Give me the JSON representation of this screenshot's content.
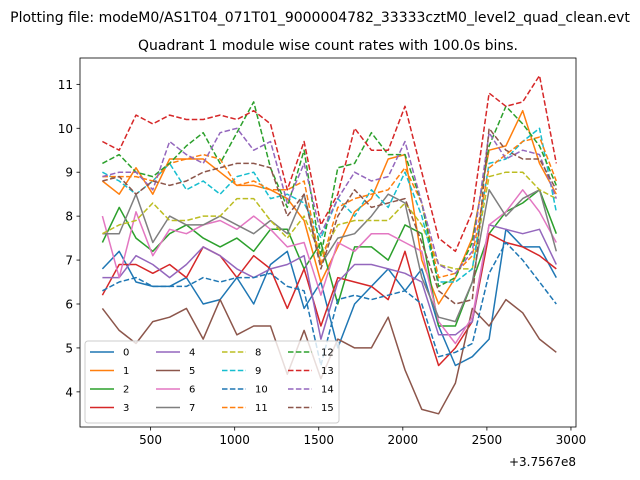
{
  "chart_data": {
    "type": "line",
    "suptitle": "Plotting file: modeM0/AS1T04_071T01_9000004782_33333cztM0_level2_quad_clean.evt",
    "title": "Quadrant 1 module wise count rates with 100.0s bins.",
    "xlabel": "",
    "ylabel": "",
    "x_offset_label": "+3.7567e8",
    "xlim": [
      80,
      3030
    ],
    "ylim": [
      3.2,
      11.6
    ],
    "x_ticks": [
      500,
      1000,
      1500,
      2000,
      2500,
      3000
    ],
    "x_tick_labels": [
      "500",
      "1000",
      "1500",
      "2000",
      "2500",
      "3000"
    ],
    "y_ticks": [
      4,
      5,
      6,
      7,
      8,
      9,
      10,
      11
    ],
    "y_tick_labels": [
      "4",
      "5",
      "6",
      "7",
      "8",
      "9",
      "10",
      "11"
    ],
    "grid": false,
    "legend_position": "lower-left",
    "legend_columns": 4,
    "x": [
      213,
      313,
      413,
      513,
      613,
      713,
      813,
      913,
      1013,
      1113,
      1213,
      1313,
      1413,
      1513,
      1613,
      1713,
      1813,
      1913,
      2013,
      2113,
      2213,
      2313,
      2413,
      2513,
      2613,
      2713,
      2813,
      2913
    ],
    "series": [
      {
        "name": "0",
        "color": "#1f77b4",
        "dash": "solid",
        "values": [
          6.8,
          7.2,
          6.5,
          6.4,
          6.4,
          6.6,
          6.0,
          6.1,
          6.6,
          6.0,
          6.9,
          7.2,
          5.9,
          6.5,
          5.0,
          6.0,
          6.4,
          6.8,
          6.3,
          6.8,
          5.5,
          4.6,
          4.8,
          5.2,
          7.7,
          7.3,
          7.3,
          6.6
        ]
      },
      {
        "name": "1",
        "color": "#ff7f0e",
        "dash": "solid",
        "values": [
          8.8,
          8.5,
          9.1,
          8.5,
          9.3,
          9.3,
          9.3,
          9.0,
          8.7,
          8.7,
          8.6,
          8.4,
          7.9,
          6.5,
          7.3,
          8.1,
          8.4,
          9.3,
          9.4,
          7.0,
          6.0,
          6.6,
          7.5,
          9.5,
          9.6,
          10.4,
          9.2,
          8.5
        ]
      },
      {
        "name": "2",
        "color": "#2ca02c",
        "dash": "solid",
        "values": [
          7.4,
          8.2,
          7.5,
          7.2,
          7.6,
          7.8,
          7.5,
          7.3,
          7.5,
          7.2,
          7.7,
          7.7,
          6.8,
          7.4,
          6.0,
          7.3,
          7.3,
          7.0,
          7.8,
          7.6,
          5.5,
          5.5,
          6.5,
          7.6,
          8.1,
          8.3,
          8.6,
          7.6
        ]
      },
      {
        "name": "3",
        "color": "#d62728",
        "dash": "solid",
        "values": [
          6.2,
          6.9,
          6.9,
          6.7,
          6.9,
          6.6,
          7.3,
          7.1,
          6.6,
          7.1,
          6.8,
          5.9,
          6.8,
          5.5,
          6.6,
          6.5,
          6.4,
          6.1,
          7.2,
          5.8,
          4.6,
          5.0,
          5.6,
          7.6,
          7.4,
          7.3,
          7.1,
          6.8
        ]
      },
      {
        "name": "4",
        "color": "#9467bd",
        "dash": "solid",
        "values": [
          6.6,
          6.6,
          7.1,
          6.9,
          6.6,
          6.9,
          7.3,
          7.1,
          6.8,
          6.6,
          6.8,
          6.9,
          7.1,
          5.2,
          6.5,
          6.9,
          6.9,
          6.8,
          6.7,
          6.5,
          5.3,
          5.3,
          5.6,
          7.8,
          7.7,
          7.6,
          7.7,
          6.9
        ]
      },
      {
        "name": "5",
        "color": "#8c564b",
        "dash": "solid",
        "values": [
          5.9,
          5.4,
          5.1,
          5.6,
          5.7,
          5.9,
          5.2,
          6.1,
          5.3,
          5.5,
          5.5,
          4.4,
          5.4,
          4.3,
          5.2,
          5.0,
          5.0,
          5.7,
          4.5,
          3.6,
          3.5,
          4.2,
          5.9,
          5.5,
          6.1,
          5.8,
          5.2,
          4.9
        ]
      },
      {
        "name": "6",
        "color": "#e377c2",
        "dash": "solid",
        "values": [
          8.0,
          6.6,
          8.1,
          7.1,
          7.7,
          7.6,
          7.8,
          7.9,
          7.7,
          8.0,
          7.7,
          7.3,
          7.4,
          6.2,
          7.4,
          7.2,
          7.6,
          7.6,
          7.4,
          7.2,
          5.6,
          5.1,
          5.7,
          7.8,
          8.1,
          8.6,
          8.1,
          7.4
        ]
      },
      {
        "name": "7",
        "color": "#7f7f7f",
        "dash": "solid",
        "values": [
          7.6,
          7.6,
          8.5,
          7.4,
          8.0,
          7.8,
          7.8,
          8.0,
          7.8,
          7.6,
          7.9,
          7.6,
          8.5,
          6.9,
          7.5,
          7.6,
          8.0,
          8.5,
          8.3,
          6.6,
          5.7,
          5.6,
          6.5,
          8.6,
          8.0,
          8.4,
          8.6,
          7.2
        ]
      },
      {
        "name": "8",
        "color": "#bcbd22",
        "dash": "dashed",
        "values": [
          7.6,
          7.8,
          7.9,
          8.3,
          7.9,
          7.9,
          8.0,
          8.0,
          8.4,
          8.4,
          7.9,
          7.5,
          8.0,
          7.1,
          7.8,
          7.9,
          7.9,
          7.9,
          8.3,
          7.8,
          6.9,
          6.8,
          6.8,
          8.9,
          9.0,
          9.0,
          8.6,
          8.4
        ]
      },
      {
        "name": "9",
        "color": "#17becf",
        "dash": "dashed",
        "values": [
          9.0,
          8.8,
          8.5,
          8.8,
          9.2,
          8.6,
          8.8,
          8.5,
          8.9,
          9.0,
          8.4,
          8.5,
          8.3,
          7.5,
          8.4,
          8.0,
          8.6,
          8.2,
          9.0,
          8.0,
          6.5,
          6.5,
          6.8,
          9.2,
          9.3,
          9.7,
          10.0,
          8.1
        ]
      },
      {
        "name": "10",
        "color": "#1f77b4",
        "dash": "dashed",
        "values": [
          6.3,
          6.5,
          6.6,
          6.4,
          6.4,
          6.4,
          6.6,
          6.5,
          6.6,
          6.6,
          6.7,
          6.4,
          6.3,
          4.6,
          6.1,
          6.2,
          6.1,
          6.2,
          6.3,
          6.0,
          4.8,
          4.9,
          5.1,
          6.7,
          7.4,
          7.0,
          6.5,
          6.0
        ]
      },
      {
        "name": "11",
        "color": "#ff7f0e",
        "dash": "dashed",
        "values": [
          8.9,
          8.9,
          8.9,
          8.8,
          9.2,
          9.3,
          9.4,
          9.3,
          8.7,
          8.8,
          8.6,
          8.6,
          8.8,
          6.9,
          8.2,
          8.4,
          8.5,
          8.6,
          9.1,
          8.3,
          6.6,
          6.7,
          7.1,
          9.1,
          9.4,
          9.7,
          9.8,
          8.8
        ]
      },
      {
        "name": "12",
        "color": "#2ca02c",
        "dash": "dashed",
        "values": [
          9.2,
          9.4,
          9.0,
          8.9,
          9.2,
          9.6,
          9.9,
          9.2,
          9.9,
          10.6,
          9.1,
          8.2,
          9.5,
          7.1,
          9.1,
          9.2,
          9.9,
          9.4,
          9.4,
          8.3,
          6.4,
          6.6,
          7.4,
          9.6,
          10.5,
          10.1,
          9.6,
          8.7
        ]
      },
      {
        "name": "13",
        "color": "#d62728",
        "dash": "dashed",
        "values": [
          9.7,
          9.5,
          10.3,
          10.1,
          10.3,
          10.2,
          10.2,
          10.3,
          10.2,
          10.4,
          10.1,
          8.6,
          9.7,
          7.8,
          8.5,
          10.0,
          9.5,
          9.5,
          10.5,
          9.0,
          7.5,
          7.2,
          8.1,
          10.8,
          10.5,
          10.6,
          11.2,
          9.2
        ]
      },
      {
        "name": "14",
        "color": "#9467bd",
        "dash": "dashed",
        "values": [
          8.9,
          9.0,
          9.0,
          8.6,
          9.7,
          9.4,
          9.2,
          9.9,
          10.0,
          9.5,
          9.7,
          8.3,
          9.2,
          7.6,
          8.4,
          9.0,
          8.8,
          8.9,
          9.7,
          8.3,
          6.9,
          6.7,
          7.2,
          9.9,
          9.3,
          9.5,
          9.4,
          8.4
        ]
      },
      {
        "name": "15",
        "color": "#8c564b",
        "dash": "dashed",
        "values": [
          8.8,
          8.9,
          8.5,
          8.8,
          8.7,
          8.8,
          9.0,
          9.1,
          9.2,
          9.2,
          9.1,
          8.0,
          8.5,
          6.8,
          8.0,
          8.6,
          8.2,
          8.3,
          8.4,
          7.4,
          6.3,
          6.0,
          6.1,
          10.0,
          9.5,
          9.3,
          9.3,
          8.6
        ]
      }
    ]
  }
}
